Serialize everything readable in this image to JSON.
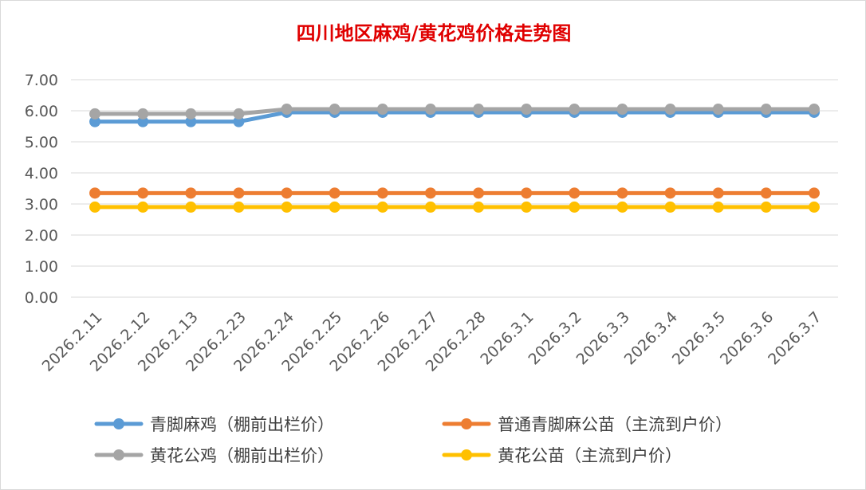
{
  "chart_data": {
    "type": "line",
    "title": "四川地区麻鸡/黄花鸡价格走势图",
    "xlabel": "",
    "ylabel": "",
    "ylim": [
      0,
      7
    ],
    "yticks": [
      "0.00",
      "1.00",
      "2.00",
      "3.00",
      "4.00",
      "5.00",
      "6.00",
      "7.00"
    ],
    "grid": true,
    "legend_position": "bottom",
    "categories": [
      "2026.2.11",
      "2026.2.12",
      "2026.2.13",
      "2026.2.23",
      "2026.2.24",
      "2026.2.25",
      "2026.2.26",
      "2026.2.27",
      "2026.2.28",
      "2026.3.1",
      "2026.3.2",
      "2026.3.3",
      "2026.3.4",
      "2026.3.5",
      "2026.3.6",
      "2026.3.7"
    ],
    "series": [
      {
        "name": "青脚麻鸡（棚前出栏价）",
        "color": "#5b9bd5",
        "values": [
          5.65,
          5.65,
          5.65,
          5.65,
          5.95,
          5.95,
          5.95,
          5.95,
          5.95,
          5.95,
          5.95,
          5.95,
          5.95,
          5.95,
          5.95,
          5.95
        ]
      },
      {
        "name": "普通青脚麻公苗（主流到户价）",
        "color": "#ed7d31",
        "values": [
          3.35,
          3.35,
          3.35,
          3.35,
          3.35,
          3.35,
          3.35,
          3.35,
          3.35,
          3.35,
          3.35,
          3.35,
          3.35,
          3.35,
          3.35,
          3.35
        ]
      },
      {
        "name": "黄花公鸡（棚前出栏价）",
        "color": "#a5a5a5",
        "values": [
          5.9,
          5.9,
          5.9,
          5.9,
          6.05,
          6.05,
          6.05,
          6.05,
          6.05,
          6.05,
          6.05,
          6.05,
          6.05,
          6.05,
          6.05,
          6.05
        ]
      },
      {
        "name": "黄花公苗（主流到户价）",
        "color": "#ffc000",
        "values": [
          2.9,
          2.9,
          2.9,
          2.9,
          2.9,
          2.9,
          2.9,
          2.9,
          2.9,
          2.9,
          2.9,
          2.9,
          2.9,
          2.9,
          2.9,
          2.9
        ]
      }
    ]
  }
}
